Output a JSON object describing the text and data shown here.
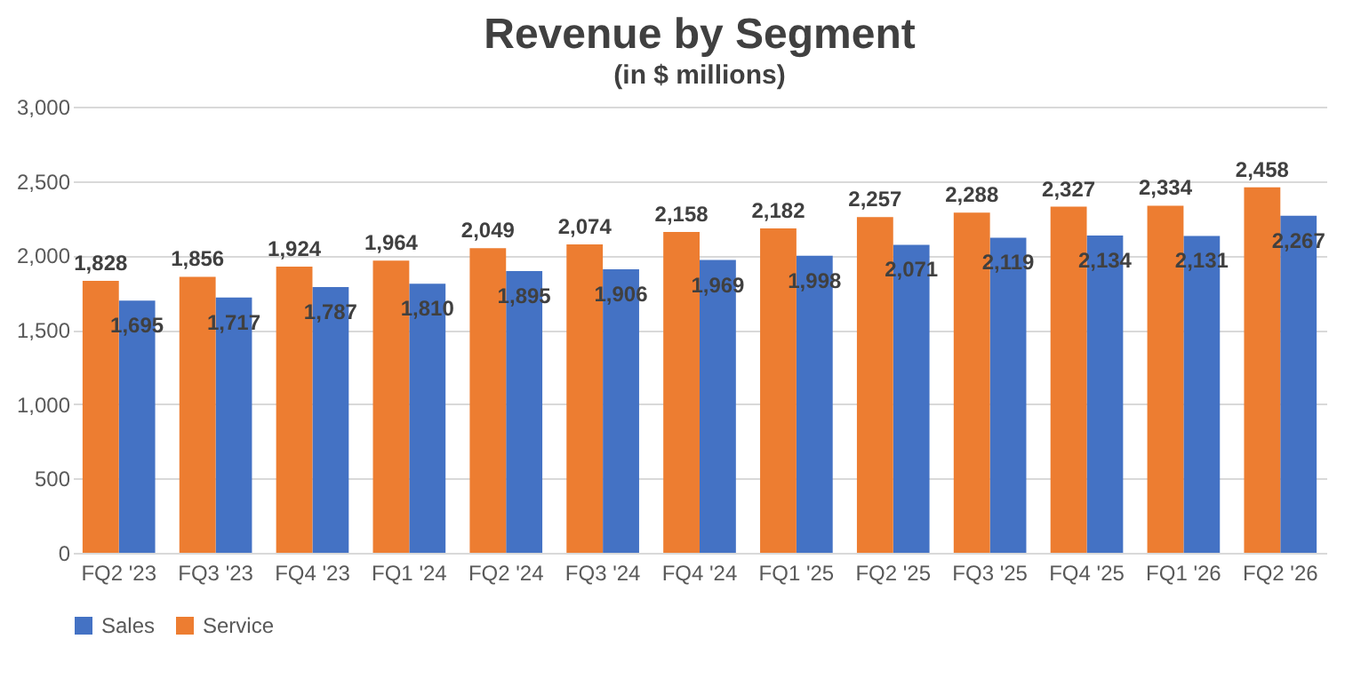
{
  "chart_data": {
    "type": "bar",
    "title": "Revenue by Segment",
    "subtitle": "(in $ millions)",
    "categories": [
      "FQ2 '23",
      "FQ3 '23",
      "FQ4 '23",
      "FQ1 '24",
      "FQ2 '24",
      "FQ3 '24",
      "FQ4 '24",
      "FQ1 '25",
      "FQ2 '25",
      "FQ3 '25",
      "FQ4 '25",
      "FQ1 '26",
      "FQ2 '26"
    ],
    "series": [
      {
        "name": "Sales",
        "color": "#4472c4",
        "values": [
          1695,
          1717,
          1787,
          1810,
          1895,
          1906,
          1969,
          1998,
          2071,
          2119,
          2134,
          2131,
          2267
        ],
        "value_labels": [
          "1,695",
          "1,717",
          "1,787",
          "1,810",
          "1,895",
          "1,906",
          "1,969",
          "1,998",
          "2,071",
          "2,119",
          "2,134",
          "2,131",
          "2,267"
        ]
      },
      {
        "name": "Service",
        "color": "#ed7d31",
        "values": [
          1828,
          1856,
          1924,
          1964,
          2049,
          2074,
          2158,
          2182,
          2257,
          2288,
          2327,
          2334,
          2458
        ],
        "value_labels": [
          "1,828",
          "1,856",
          "1,924",
          "1,964",
          "2,049",
          "2,074",
          "2,158",
          "2,182",
          "2,257",
          "2,288",
          "2,327",
          "2,334",
          "2,458"
        ]
      }
    ],
    "ylim": [
      0,
      3000
    ],
    "yticks": [
      0,
      {
        "value": 500,
        "label": "500"
      },
      {
        "value": 1000,
        "label": "1,000"
      },
      {
        "value": 1500,
        "label": "1,500"
      },
      {
        "value": 2000,
        "label": "2,000"
      },
      {
        "value": 2500,
        "label": "2,500"
      },
      {
        "value": 3000,
        "label": "3,000"
      }
    ],
    "grid": "y",
    "legend": "bottom"
  }
}
